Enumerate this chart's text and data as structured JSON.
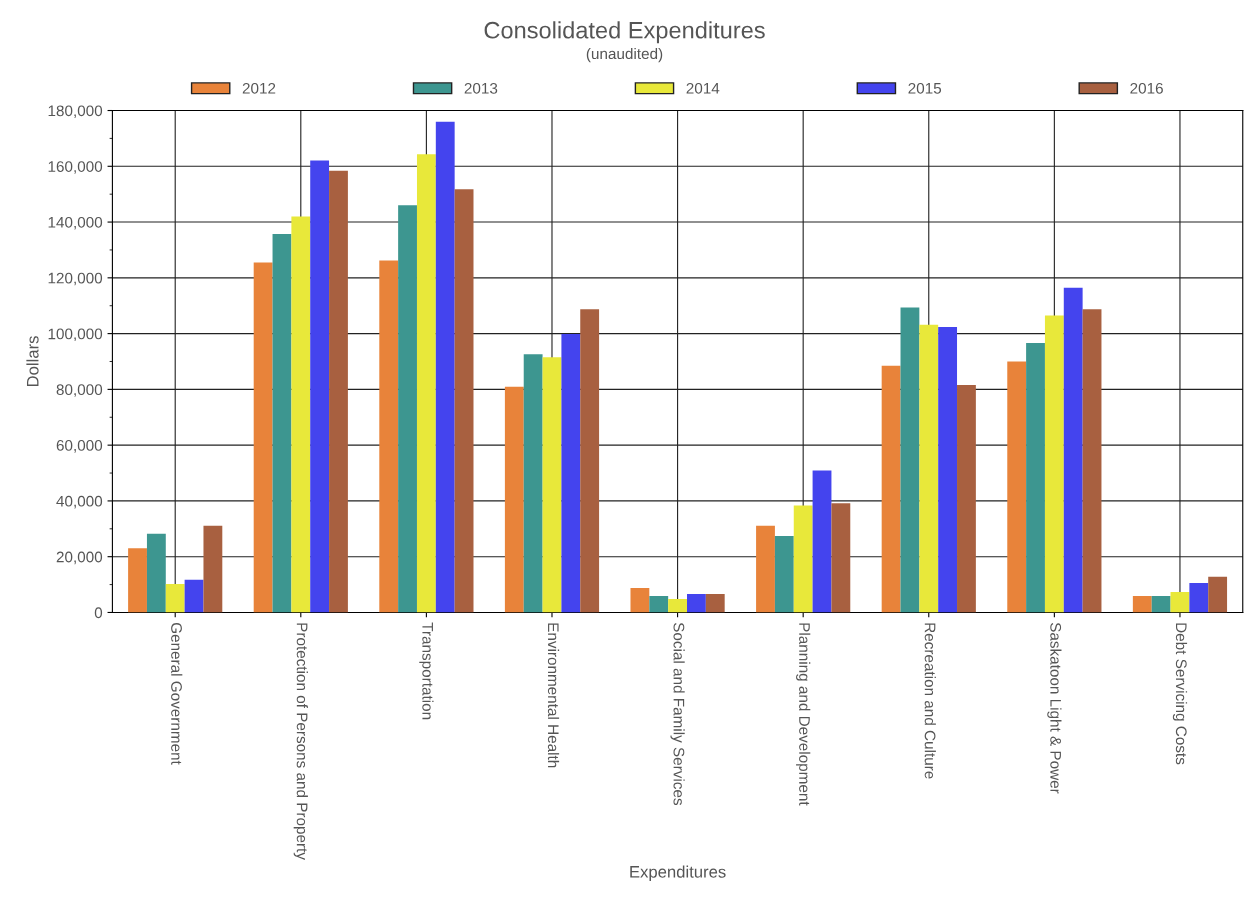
{
  "chart_data": {
    "type": "bar",
    "title": "Consolidated Expenditures",
    "subtitle": "(unaudited)",
    "xlabel": "Expenditures",
    "ylabel": "Dollars",
    "categories": [
      "General Government",
      "Protection of Persons and Property",
      "Transportation",
      "Environmental Health",
      "Social and Family Services",
      "Planning and Development",
      "Recreation and Culture",
      "Saskatoon Light & Power",
      "Debt Servicing Costs"
    ],
    "series": [
      {
        "name": "2012",
        "color": "#e8833a",
        "values": [
          23000,
          125500,
          126200,
          80900,
          8800,
          31100,
          88500,
          90000,
          5900
        ]
      },
      {
        "name": "2013",
        "color": "#3d9690",
        "values": [
          28200,
          135700,
          146000,
          92600,
          5900,
          27400,
          109400,
          96600,
          5900
        ]
      },
      {
        "name": "2014",
        "color": "#e8e83a",
        "values": [
          10200,
          142000,
          164300,
          91500,
          4800,
          38400,
          103200,
          106500,
          7300
        ]
      },
      {
        "name": "2015",
        "color": "#4444ee",
        "values": [
          11700,
          162100,
          176000,
          99900,
          6600,
          50900,
          102400,
          116400,
          10600
        ]
      },
      {
        "name": "2016",
        "color": "#a86040",
        "values": [
          31100,
          158400,
          151800,
          108700,
          6600,
          39200,
          81600,
          108700,
          12800
        ]
      }
    ],
    "ylim": [
      0,
      180000
    ],
    "yticks": [
      {
        "value": 0,
        "label": "0"
      },
      {
        "value": 20000,
        "label": "20,000"
      },
      {
        "value": 40000,
        "label": "40,000"
      },
      {
        "value": 60000,
        "label": "60,000"
      },
      {
        "value": 80000,
        "label": "80,000"
      },
      {
        "value": 100000,
        "label": "100,000"
      },
      {
        "value": 120000,
        "label": "120,000"
      },
      {
        "value": 140000,
        "label": "140,000"
      },
      {
        "value": 160000,
        "label": "160,000"
      },
      {
        "value": 180000,
        "label": "180,000"
      }
    ],
    "grid": true,
    "legend": "top"
  }
}
